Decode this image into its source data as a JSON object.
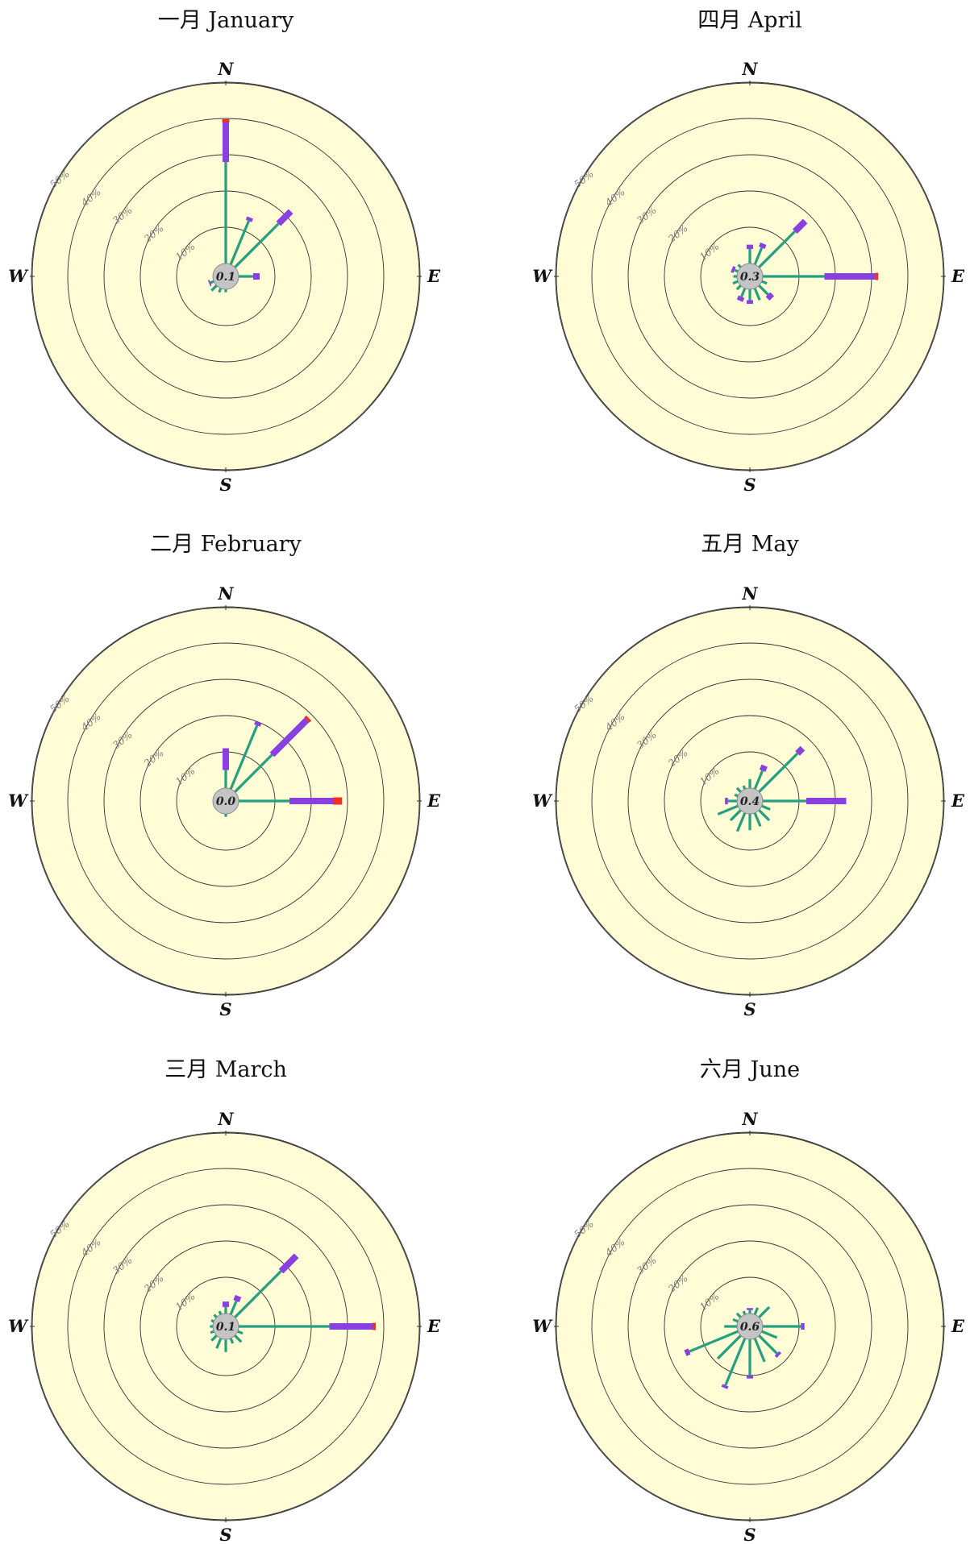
{
  "chart_data": [
    {
      "type": "windrose",
      "title": "一月 January",
      "calm": "0.1",
      "directions": [
        "N",
        "NNE",
        "NE",
        "ENE",
        "E",
        "ESE",
        "SE",
        "SSE",
        "S",
        "SSW",
        "SW",
        "WSW",
        "W",
        "WNW",
        "NW",
        "NNW"
      ],
      "compass": {
        "N": "N",
        "E": "E",
        "S": "S",
        "W": "W"
      },
      "ring_labels": [
        "10%",
        "20%",
        "30%",
        "40%",
        "50%"
      ],
      "series_colors": [
        "#22a07f",
        "#8a3fe0",
        "#f2301d"
      ],
      "values": [
        [
          28,
          11,
          0.8
        ],
        [
          13,
          1,
          0
        ],
        [
          17,
          4.8,
          0
        ],
        [
          0,
          0,
          0
        ],
        [
          4,
          1.8,
          0
        ],
        [
          0,
          0,
          0
        ],
        [
          0,
          0,
          0
        ],
        [
          0,
          0,
          0
        ],
        [
          0.8,
          0,
          0
        ],
        [
          1.2,
          0,
          0
        ],
        [
          2,
          0,
          0
        ],
        [
          1,
          0.4,
          0
        ],
        [
          0,
          0,
          0
        ],
        [
          0,
          0,
          0
        ],
        [
          0,
          0,
          0
        ],
        [
          0,
          0,
          0
        ]
      ]
    },
    {
      "type": "windrose",
      "title": "二月 February",
      "calm": "0.0",
      "directions": [
        "N",
        "NNE",
        "NE",
        "ENE",
        "E",
        "ESE",
        "SE",
        "SSE",
        "S",
        "SSW",
        "SW",
        "WSW",
        "W",
        "WNW",
        "NW",
        "NNW"
      ],
      "compass": {
        "N": "N",
        "E": "E",
        "S": "S",
        "W": "W"
      },
      "ring_labels": [
        "10%",
        "20%",
        "30%",
        "40%",
        "50%"
      ],
      "series_colors": [
        "#22a07f",
        "#8a3fe0",
        "#f2301d"
      ],
      "values": [
        [
          5,
          6,
          0
        ],
        [
          19,
          1,
          0
        ],
        [
          14.5,
          13.5,
          0.8
        ],
        [
          0,
          0,
          0
        ],
        [
          14,
          12,
          2.5
        ],
        [
          0,
          0,
          0
        ],
        [
          0,
          0,
          0
        ],
        [
          0,
          0,
          0
        ],
        [
          0.8,
          0,
          0
        ],
        [
          0,
          0,
          0
        ],
        [
          0,
          0,
          0
        ],
        [
          0,
          0,
          0
        ],
        [
          0,
          0,
          0
        ],
        [
          0,
          0,
          0
        ],
        [
          0,
          0,
          0
        ],
        [
          0,
          0,
          0
        ]
      ]
    },
    {
      "type": "windrose",
      "title": "三月 March",
      "calm": "0.1",
      "directions": [
        "N",
        "NNE",
        "NE",
        "ENE",
        "E",
        "ESE",
        "SE",
        "SSE",
        "S",
        "SSW",
        "SW",
        "WSW",
        "W",
        "WNW",
        "NW",
        "NNW"
      ],
      "compass": {
        "N": "N",
        "E": "E",
        "S": "S",
        "W": "W"
      },
      "ring_labels": [
        "10%",
        "20%",
        "30%",
        "40%",
        "50%"
      ],
      "series_colors": [
        "#22a07f",
        "#8a3fe0",
        "#f2301d"
      ],
      "values": [
        [
          1.8,
          1.5,
          0
        ],
        [
          4,
          1.5,
          0
        ],
        [
          18,
          6,
          0
        ],
        [
          0,
          0,
          0
        ],
        [
          25,
          12,
          0.8
        ],
        [
          1.5,
          0,
          0
        ],
        [
          2.5,
          0,
          0
        ],
        [
          1.5,
          0,
          0
        ],
        [
          3.5,
          0,
          0
        ],
        [
          3,
          0,
          0
        ],
        [
          2,
          0,
          0
        ],
        [
          1,
          0,
          0
        ],
        [
          0.8,
          0,
          0
        ],
        [
          0.8,
          0,
          0
        ],
        [
          1,
          0,
          0
        ],
        [
          1,
          0,
          0
        ]
      ]
    },
    {
      "type": "windrose",
      "title": "四月 April",
      "calm": "0.3",
      "directions": [
        "N",
        "NNE",
        "NE",
        "ENE",
        "E",
        "ESE",
        "SE",
        "SSE",
        "S",
        "SSW",
        "SW",
        "WSW",
        "W",
        "WNW",
        "NW",
        "NNW"
      ],
      "compass": {
        "N": "N",
        "E": "E",
        "S": "S",
        "W": "W"
      },
      "ring_labels": [
        "10%",
        "20%",
        "30%",
        "40%",
        "50%"
      ],
      "series_colors": [
        "#22a07f",
        "#8a3fe0",
        "#f2301d"
      ],
      "values": [
        [
          4,
          1.2,
          0
        ],
        [
          5,
          1.2,
          0
        ],
        [
          14,
          4,
          0
        ],
        [
          0,
          0,
          0
        ],
        [
          17,
          14,
          0.8
        ],
        [
          1.5,
          0,
          0
        ],
        [
          3.5,
          1.5,
          0
        ],
        [
          3.5,
          0,
          0
        ],
        [
          3,
          1,
          0
        ],
        [
          2.5,
          1.2,
          0
        ],
        [
          1.5,
          0,
          0
        ],
        [
          1.5,
          0,
          0
        ],
        [
          1,
          0,
          0
        ],
        [
          1,
          0.8,
          0
        ],
        [
          1,
          0,
          0
        ],
        [
          0,
          0,
          0
        ]
      ]
    },
    {
      "type": "windrose",
      "title": "五月 May",
      "calm": "0.4",
      "directions": [
        "N",
        "NNE",
        "NE",
        "ENE",
        "E",
        "ESE",
        "SE",
        "SSE",
        "S",
        "SSW",
        "SW",
        "WSW",
        "W",
        "WNW",
        "NW",
        "NNW"
      ],
      "compass": {
        "N": "N",
        "E": "E",
        "S": "S",
        "W": "W"
      },
      "ring_labels": [
        "10%",
        "20%",
        "30%",
        "40%",
        "50%"
      ],
      "series_colors": [
        "#22a07f",
        "#8a3fe0",
        "#f2301d"
      ],
      "values": [
        [
          2.5,
          0,
          0
        ],
        [
          5.5,
          1.5,
          0
        ],
        [
          15,
          2,
          0
        ],
        [
          0,
          0,
          0
        ],
        [
          12,
          11,
          0
        ],
        [
          2.5,
          0,
          0
        ],
        [
          4,
          0,
          0
        ],
        [
          4,
          0,
          0
        ],
        [
          4.5,
          0,
          0
        ],
        [
          5.5,
          0,
          0
        ],
        [
          4,
          0,
          0
        ],
        [
          6,
          0,
          0
        ],
        [
          2.5,
          0.8,
          0
        ],
        [
          1,
          0,
          0
        ],
        [
          1.5,
          0,
          0
        ],
        [
          1,
          0,
          0
        ]
      ]
    },
    {
      "type": "windrose",
      "title": "六月 June",
      "calm": "0.6",
      "directions": [
        "N",
        "NNE",
        "NE",
        "ENE",
        "E",
        "ESE",
        "SE",
        "SSE",
        "S",
        "SSW",
        "SW",
        "WSW",
        "W",
        "WNW",
        "NW",
        "NNW"
      ],
      "compass": {
        "N": "N",
        "E": "E",
        "S": "S",
        "W": "W"
      },
      "ring_labels": [
        "10%",
        "20%",
        "30%",
        "40%",
        "50%"
      ],
      "series_colors": [
        "#22a07f",
        "#8a3fe0",
        "#f2301d"
      ],
      "values": [
        [
          1,
          0.5,
          0
        ],
        [
          2,
          0,
          0
        ],
        [
          4,
          0,
          0
        ],
        [
          0,
          0,
          0
        ],
        [
          10.5,
          1,
          0
        ],
        [
          4.5,
          0,
          0
        ],
        [
          7,
          0.8,
          0
        ],
        [
          7,
          0,
          0
        ],
        [
          10,
          0.8,
          0
        ],
        [
          14,
          0.8,
          0
        ],
        [
          9,
          0,
          0
        ],
        [
          14.5,
          1.2,
          0
        ],
        [
          3.5,
          0,
          0
        ],
        [
          1.5,
          0,
          0
        ],
        [
          1.5,
          0,
          0
        ],
        [
          1,
          0,
          0
        ]
      ]
    }
  ]
}
